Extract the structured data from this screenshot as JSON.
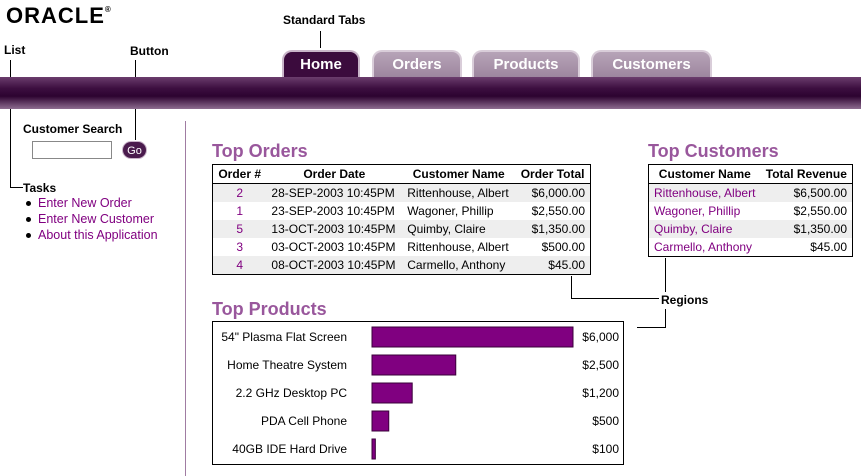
{
  "logo": {
    "text": "ORACLE",
    "mark": "®"
  },
  "callouts": {
    "standard_tabs": "Standard Tabs",
    "list": "List",
    "button": "Button",
    "regions": "Regions"
  },
  "tabs": [
    {
      "label": "Home",
      "active": true
    },
    {
      "label": "Orders",
      "active": false
    },
    {
      "label": "Products",
      "active": false
    },
    {
      "label": "Customers",
      "active": false
    }
  ],
  "sidebar": {
    "search_label": "Customer Search",
    "search_value": "",
    "go_label": "Go",
    "tasks_label": "Tasks",
    "tasks": [
      "Enter New Order",
      "Enter New Customer",
      "About this Application"
    ]
  },
  "top_orders": {
    "title": "Top Orders",
    "columns": [
      "Order #",
      "Order Date",
      "Customer Name",
      "Order Total"
    ],
    "rows": [
      [
        "2",
        "28-SEP-2003 10:45PM",
        "Rittenhouse, Albert",
        "$6,000.00"
      ],
      [
        "1",
        "23-SEP-2003 10:45PM",
        "Wagoner, Phillip",
        "$2,550.00"
      ],
      [
        "5",
        "13-OCT-2003 10:45PM",
        "Quimby, Claire",
        "$1,350.00"
      ],
      [
        "3",
        "03-OCT-2003 10:45PM",
        "Rittenhouse, Albert",
        "$500.00"
      ],
      [
        "4",
        "08-OCT-2003 10:45PM",
        "Carmello, Anthony",
        "$45.00"
      ]
    ]
  },
  "top_customers": {
    "title": "Top Customers",
    "columns": [
      "Customer Name",
      "Total Revenue"
    ],
    "rows": [
      [
        "Rittenhouse, Albert",
        "$6,500.00"
      ],
      [
        "Wagoner, Phillip",
        "$2,550.00"
      ],
      [
        "Quimby, Claire",
        "$1,350.00"
      ],
      [
        "Carmello, Anthony",
        "$45.00"
      ]
    ]
  },
  "top_products": {
    "title": "Top Products",
    "bar_color": "#800080"
  },
  "chart_data": {
    "type": "bar",
    "orientation": "horizontal",
    "categories": [
      "54\" Plasma Flat Screen",
      "Home Theatre System",
      "2.2 GHz Desktop PC",
      "PDA Cell Phone",
      "40GB IDE Hard Drive"
    ],
    "values": [
      6000,
      2500,
      1200,
      500,
      100
    ],
    "value_labels": [
      "$6,000",
      "$2,500",
      "$1,200",
      "$500",
      "$100"
    ],
    "xlim": [
      0,
      6000
    ],
    "grid": false,
    "legend": "none"
  }
}
